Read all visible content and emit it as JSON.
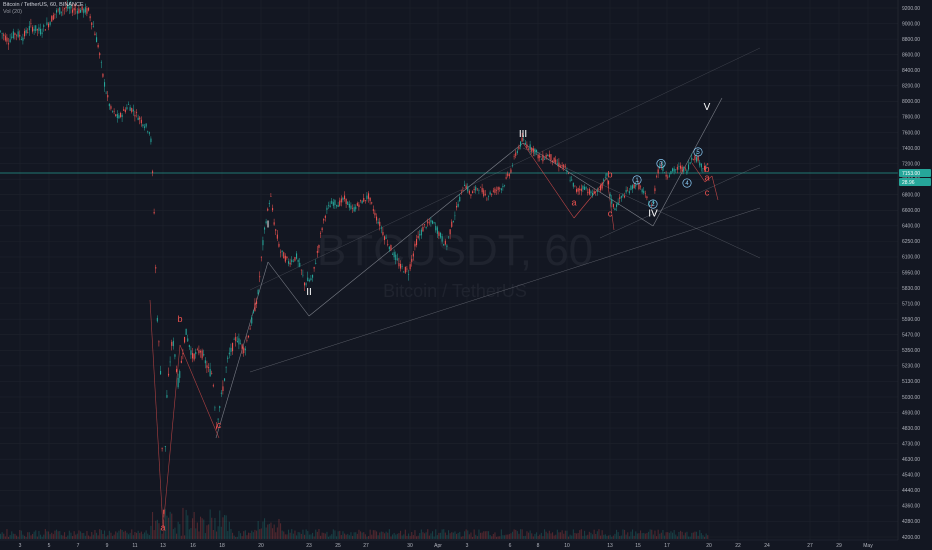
{
  "header": {
    "title": "Bitcoin / TetherUS, 60, BINANCE",
    "volume_label": "Vol (20)"
  },
  "watermark": {
    "symbol": "BTCUSDT, 60",
    "description": "Bitcoin / TetherUS"
  },
  "colors": {
    "background": "#131722",
    "grid": "#1e222d",
    "up": "#26a69a",
    "down": "#ef5350",
    "annotation_line": "#9598a1",
    "horizontal_line": "#26a69a",
    "primary_wave": "#ffffff",
    "corrective_wave": "#ef5350",
    "minor_wave": "#8fd3ff",
    "axis_text": "#b2b5be"
  },
  "chart_data": {
    "type": "candlestick",
    "timeframe": "60",
    "exchange": "BINANCE",
    "y_ticks": [
      "9200.00",
      "9000.00",
      "8800.00",
      "8600.00",
      "8400.00",
      "8200.00",
      "8000.00",
      "7800.00",
      "7600.00",
      "7400.00",
      "7200.00",
      "7000.00",
      "6800.00",
      "6600.00",
      "6400.00",
      "6250.00",
      "6100.00",
      "5950.00",
      "5830.00",
      "5710.00",
      "5590.00",
      "5470.00",
      "5350.00",
      "5230.00",
      "5130.00",
      "5030.00",
      "4930.00",
      "4830.00",
      "4730.00",
      "4630.00",
      "4540.00",
      "4440.00",
      "4360.00",
      "4280.00",
      "4200.00"
    ],
    "x_ticks": [
      "3",
      "5",
      "7",
      "9",
      "11",
      "13",
      "16",
      "18",
      "20",
      "23",
      "25",
      "27",
      "30",
      "Apr",
      "3",
      "6",
      "8",
      "10",
      "13",
      "15",
      "17",
      "20",
      "22",
      "24",
      "27",
      "29",
      "May"
    ],
    "price_badges": [
      {
        "value": "7153.00",
        "color": "#26a69a"
      },
      {
        "value": "28.96",
        "color": "#26a69a"
      }
    ],
    "ohlc_path": [
      [
        0,
        8900
      ],
      [
        8,
        8780
      ],
      [
        15,
        8880
      ],
      [
        22,
        8820
      ],
      [
        30,
        8960
      ],
      [
        40,
        8900
      ],
      [
        48,
        9000
      ],
      [
        55,
        9140
      ],
      [
        65,
        9200
      ],
      [
        75,
        9180
      ],
      [
        88,
        9160
      ],
      [
        92,
        9000
      ],
      [
        98,
        8700
      ],
      [
        102,
        8350
      ],
      [
        106,
        8100
      ],
      [
        110,
        7900
      ],
      [
        118,
        7780
      ],
      [
        128,
        7950
      ],
      [
        138,
        7800
      ],
      [
        150,
        7600
      ],
      [
        153,
        6800
      ],
      [
        156,
        5700
      ],
      [
        160,
        5200
      ],
      [
        163,
        4280
      ],
      [
        166,
        5000
      ],
      [
        172,
        5450
      ],
      [
        178,
        5100
      ],
      [
        185,
        5500
      ],
      [
        192,
        5300
      ],
      [
        200,
        5350
      ],
      [
        208,
        5200
      ],
      [
        212,
        5180
      ],
      [
        216,
        4850
      ],
      [
        220,
        5000
      ],
      [
        228,
        5300
      ],
      [
        236,
        5450
      ],
      [
        244,
        5350
      ],
      [
        252,
        5600
      ],
      [
        258,
        5800
      ],
      [
        262,
        6200
      ],
      [
        266,
        6500
      ],
      [
        270,
        6800
      ],
      [
        274,
        6400
      ],
      [
        280,
        6150
      ],
      [
        288,
        6050
      ],
      [
        296,
        6100
      ],
      [
        304,
        5870
      ],
      [
        312,
        5900
      ],
      [
        320,
        6300
      ],
      [
        326,
        6600
      ],
      [
        332,
        6700
      ],
      [
        338,
        6680
      ],
      [
        344,
        6750
      ],
      [
        352,
        6600
      ],
      [
        360,
        6700
      ],
      [
        368,
        6780
      ],
      [
        376,
        6500
      ],
      [
        384,
        6300
      ],
      [
        392,
        6150
      ],
      [
        400,
        6000
      ],
      [
        408,
        5960
      ],
      [
        416,
        6250
      ],
      [
        424,
        6400
      ],
      [
        432,
        6450
      ],
      [
        440,
        6300
      ],
      [
        446,
        6200
      ],
      [
        452,
        6450
      ],
      [
        458,
        6700
      ],
      [
        464,
        6950
      ],
      [
        470,
        6800
      ],
      [
        478,
        6900
      ],
      [
        486,
        6780
      ],
      [
        494,
        6850
      ],
      [
        502,
        6900
      ],
      [
        510,
        7100
      ],
      [
        516,
        7350
      ],
      [
        522,
        7500
      ],
      [
        528,
        7420
      ],
      [
        534,
        7380
      ],
      [
        540,
        7250
      ],
      [
        548,
        7320
      ],
      [
        556,
        7200
      ],
      [
        564,
        7150
      ],
      [
        570,
        7000
      ],
      [
        576,
        6850
      ],
      [
        584,
        6900
      ],
      [
        592,
        6800
      ],
      [
        600,
        6880
      ],
      [
        607,
        7050
      ],
      [
        610,
        6750
      ],
      [
        614,
        6620
      ],
      [
        620,
        6750
      ],
      [
        628,
        6850
      ],
      [
        636,
        6950
      ],
      [
        642,
        6850
      ],
      [
        648,
        6700
      ],
      [
        652,
        6620
      ],
      [
        656,
        7050
      ],
      [
        660,
        7200
      ],
      [
        666,
        7050
      ],
      [
        672,
        7100
      ],
      [
        680,
        7150
      ],
      [
        686,
        7100
      ],
      [
        692,
        7300
      ],
      [
        698,
        7250
      ],
      [
        702,
        7150
      ],
      [
        706,
        7160
      ]
    ],
    "volume_note": "volume histogram shown along the bottom (Vol 20)",
    "wave_labels": [
      {
        "text": "I",
        "color": "primary_wave",
        "x_date": "Mar 20",
        "price": 6420
      },
      {
        "text": "II",
        "color": "primary_wave",
        "x_date": "Mar 23",
        "price": 5800
      },
      {
        "text": "III",
        "color": "primary_wave",
        "x_date": "Apr 6",
        "price": 7580
      },
      {
        "text": "IV",
        "color": "primary_wave",
        "x_date": "Apr 16",
        "price": 6560
      },
      {
        "text": "V",
        "color": "primary_wave",
        "x_date": "Apr 20",
        "price": 7930
      },
      {
        "text": "a",
        "color": "corrective_wave",
        "x_date": "Mar 13",
        "price": 4250
      },
      {
        "text": "b",
        "color": "corrective_wave",
        "x_date": "Mar 14",
        "price": 5590
      },
      {
        "text": "c",
        "color": "corrective_wave",
        "x_date": "Mar 16",
        "price": 4850
      },
      {
        "text": "a",
        "color": "corrective_wave",
        "x_date": "Apr 10",
        "price": 6700
      },
      {
        "text": "b",
        "color": "corrective_wave",
        "x_date": "Apr 13",
        "price": 7060
      },
      {
        "text": "c",
        "color": "corrective_wave",
        "x_date": "Apr 13",
        "price": 6560
      },
      {
        "text": "b",
        "color": "corrective_wave",
        "x_date": "Apr 20",
        "price": 7130
      },
      {
        "text": "a",
        "color": "corrective_wave",
        "x_date": "Apr 20",
        "price": 7020
      },
      {
        "text": "c",
        "color": "corrective_wave",
        "x_date": "Apr 20",
        "price": 6830
      },
      {
        "text": "1",
        "color": "minor_wave",
        "x_date": "Apr 15",
        "price": 6990
      },
      {
        "text": "2",
        "color": "minor_wave",
        "x_date": "Apr 16",
        "price": 6680
      },
      {
        "text": "3",
        "color": "minor_wave",
        "x_date": "Apr 17",
        "price": 7200
      },
      {
        "text": "4",
        "color": "minor_wave",
        "x_date": "Apr 18",
        "price": 6950
      },
      {
        "text": "5",
        "color": "minor_wave",
        "x_date": "Apr 19",
        "price": 7350
      }
    ]
  }
}
